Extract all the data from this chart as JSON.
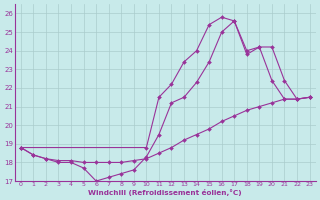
{
  "xlabel": "Windchill (Refroidissement éolien,°C)",
  "background_color": "#c8eaea",
  "line_color": "#993399",
  "grid_color": "#aacccc",
  "ylim": [
    17,
    26.5
  ],
  "xlim": [
    -0.5,
    23.5
  ],
  "yticks": [
    17,
    18,
    19,
    20,
    21,
    22,
    23,
    24,
    25,
    26
  ],
  "xticks": [
    0,
    1,
    2,
    3,
    4,
    5,
    6,
    7,
    8,
    9,
    10,
    11,
    12,
    13,
    14,
    15,
    16,
    17,
    18,
    19,
    20,
    21,
    22,
    23
  ],
  "line1_x": [
    0,
    1,
    2,
    3,
    4,
    5,
    6,
    7,
    8,
    9,
    10,
    11,
    12,
    13,
    14,
    15,
    16,
    17,
    18,
    19,
    20,
    21,
    22,
    23
  ],
  "line1_y": [
    18.8,
    18.4,
    18.2,
    18.1,
    18.1,
    18.0,
    18.0,
    18.0,
    18.0,
    18.1,
    18.2,
    18.5,
    18.8,
    19.2,
    19.5,
    19.8,
    20.2,
    20.5,
    20.8,
    21.0,
    21.2,
    21.4,
    21.4,
    21.5
  ],
  "line2_x": [
    0,
    1,
    2,
    3,
    4,
    5,
    6,
    7,
    8,
    9,
    10,
    11,
    12,
    13,
    14,
    15,
    16,
    17,
    18,
    19,
    20,
    21,
    22,
    23
  ],
  "line2_y": [
    18.8,
    18.4,
    18.2,
    18.0,
    18.0,
    17.7,
    17.0,
    17.2,
    17.4,
    17.6,
    18.3,
    19.5,
    21.2,
    21.5,
    22.3,
    23.4,
    25.0,
    25.6,
    24.0,
    24.2,
    24.2,
    22.4,
    21.4,
    21.5
  ],
  "line3_x": [
    0,
    10,
    11,
    12,
    13,
    14,
    15,
    16,
    17,
    18,
    19,
    20,
    21,
    22,
    23
  ],
  "line3_y": [
    18.8,
    18.8,
    21.5,
    22.2,
    23.4,
    24.0,
    25.4,
    25.8,
    25.6,
    23.8,
    24.2,
    22.4,
    21.4,
    21.4,
    21.5
  ]
}
